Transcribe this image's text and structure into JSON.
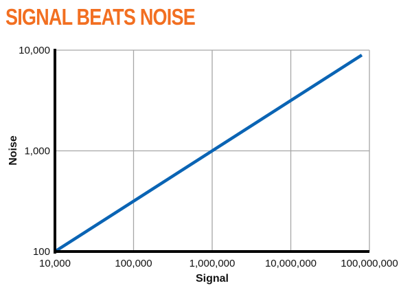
{
  "chart_data": {
    "type": "line",
    "title": "SIGNAL BEATS NOISE",
    "xlabel": "Signal",
    "ylabel": "Noise",
    "xscale": "log",
    "yscale": "log",
    "xlim": [
      10000,
      100000000
    ],
    "ylim": [
      100,
      10000
    ],
    "xticks": [
      10000,
      100000,
      1000000,
      10000000,
      100000000
    ],
    "xtick_labels": [
      "10,000",
      "100,000",
      "1,000,000",
      "10,000,000",
      "100,000,000"
    ],
    "yticks": [
      100,
      1000,
      10000
    ],
    "ytick_labels": [
      "100",
      "1,000",
      "10,000"
    ],
    "grid": true,
    "series": [
      {
        "name": "Noise",
        "color": "#0a64b4",
        "x": [
          10000,
          80000000
        ],
        "y": [
          100,
          8944
        ]
      }
    ]
  },
  "colors": {
    "title": "#f26f21",
    "line": "#0a64b4",
    "grid": "#a6a6a6",
    "axis": "#000000"
  }
}
